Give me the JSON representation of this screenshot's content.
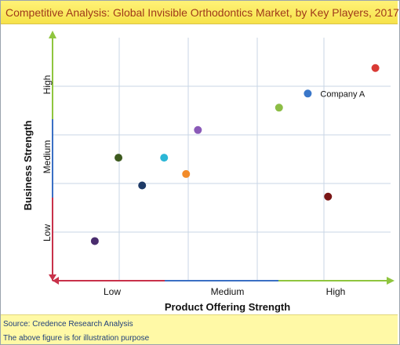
{
  "title": "Competitive Analysis: Global Invisible Orthodontics Market, by Key Players, 2017",
  "footer": {
    "source": "Source: Credence Research Analysis",
    "note": "The above figure is for illustration purpose"
  },
  "chart_data": {
    "type": "scatter",
    "title": "Competitive Analysis: Global Invisible Orthodontics Market, by Key Players, 2017",
    "xlabel": "Product Offering Strength",
    "ylabel": "Business Strength",
    "x_ticks": [
      "Low",
      "Medium",
      "High"
    ],
    "y_ticks": [
      "Low",
      "Medium",
      "High"
    ],
    "xlim": [
      0,
      10
    ],
    "ylim": [
      0,
      10
    ],
    "grid": true,
    "points": [
      {
        "x": 9.55,
        "y": 8.75,
        "color": "#d93a35",
        "label": ""
      },
      {
        "x": 7.55,
        "y": 7.7,
        "color": "#3a77c9",
        "label": "Company A"
      },
      {
        "x": 6.7,
        "y": 7.12,
        "color": "#8cbd45",
        "label": ""
      },
      {
        "x": 4.3,
        "y": 6.2,
        "color": "#8a5ab8",
        "label": ""
      },
      {
        "x": 1.95,
        "y": 5.06,
        "color": "#3d5a1e",
        "label": ""
      },
      {
        "x": 3.3,
        "y": 5.06,
        "color": "#2bb6d6",
        "label": ""
      },
      {
        "x": 2.65,
        "y": 3.92,
        "color": "#1e3a66",
        "label": ""
      },
      {
        "x": 3.95,
        "y": 4.39,
        "color": "#f28b2a",
        "label": ""
      },
      {
        "x": 8.15,
        "y": 3.46,
        "color": "#7a1616",
        "label": ""
      },
      {
        "x": 1.25,
        "y": 1.63,
        "color": "#4a2d6e",
        "label": ""
      }
    ]
  }
}
